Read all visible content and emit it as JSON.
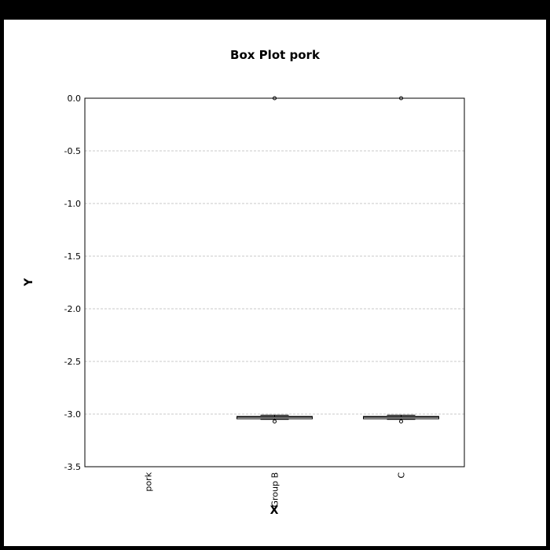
{
  "chart_data": {
    "type": "box",
    "title": "Box Plot pork",
    "xlabel": "X",
    "ylabel": "Y",
    "ylim": [
      -3.5,
      0.0
    ],
    "yticks": [
      "0.0",
      "-0.5",
      "-1.0",
      "-1.5",
      "-2.0",
      "-2.5",
      "-3.0",
      "-3.5"
    ],
    "ytick_values": [
      0.0,
      -0.5,
      -1.0,
      -1.5,
      -2.0,
      -2.5,
      -3.0,
      -3.5
    ],
    "grid": "horizontal dashed",
    "categories": [
      "pork",
      "Group B",
      "C"
    ],
    "boxes": [
      null,
      {
        "whisker_low": -3.05,
        "q1": -3.04,
        "median": -3.03,
        "q3": -3.03,
        "whisker_high": -3.01,
        "outliers": [
          0.0,
          -3.07
        ]
      },
      {
        "whisker_low": -3.05,
        "q1": -3.04,
        "median": -3.03,
        "q3": -3.03,
        "whisker_high": -3.01,
        "outliers": [
          0.0,
          -3.07
        ]
      }
    ],
    "colors": {
      "box": "#000000",
      "grid": "#c8c8c8",
      "background": "#ffffff"
    }
  }
}
